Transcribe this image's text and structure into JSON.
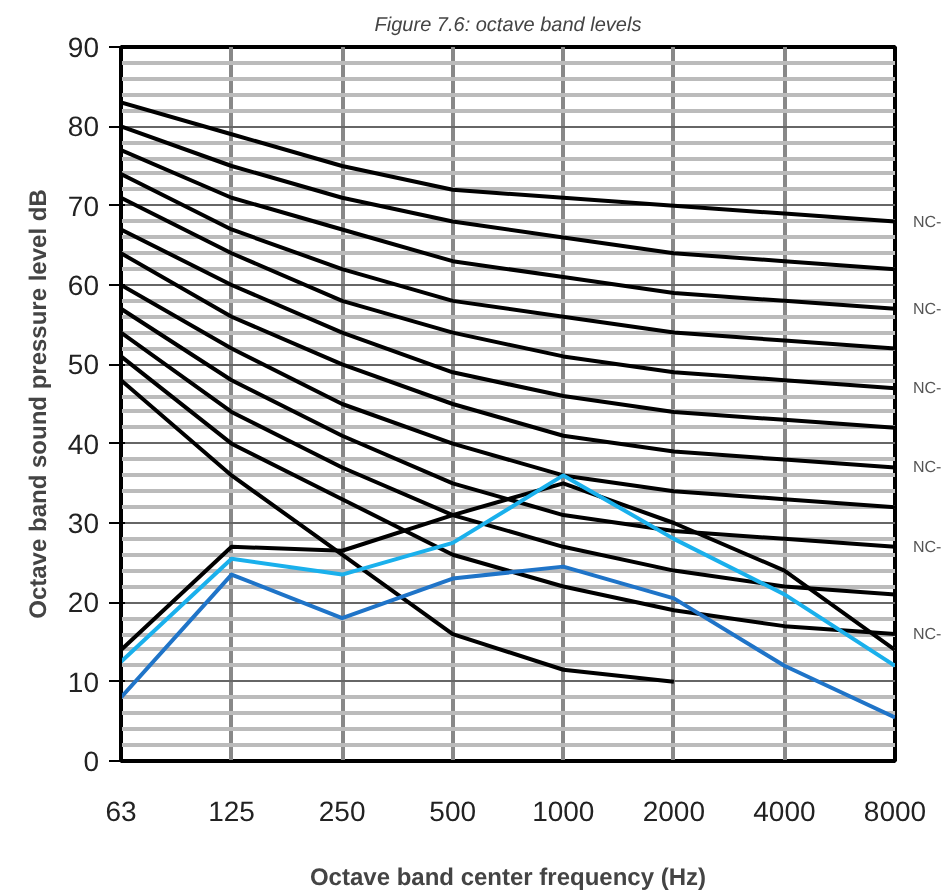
{
  "chart_data": {
    "type": "line",
    "title": "Figure 7.6: octave band levels",
    "xlabel": "Octave band center frequency (Hz)",
    "ylabel": "Octave band sound pressure level dB",
    "categories": [
      "63",
      "125",
      "250",
      "500",
      "1000",
      "2000",
      "4000",
      "8000"
    ],
    "ylim": [
      0,
      90
    ],
    "yticks": [
      0,
      10,
      20,
      30,
      40,
      50,
      60,
      70,
      80,
      90
    ],
    "grid": true,
    "marker": "none",
    "line_style": "solid",
    "series": [
      {
        "color": "#000000",
        "values": [
          83,
          79,
          75,
          72,
          71,
          70,
          69,
          68
        ]
      },
      {
        "color": "#000000",
        "values": [
          80,
          75,
          71,
          68,
          66,
          64,
          63,
          62
        ]
      },
      {
        "color": "#000000",
        "values": [
          77,
          71,
          67,
          63,
          61,
          59,
          58,
          57
        ]
      },
      {
        "color": "#000000",
        "values": [
          74,
          67,
          62,
          58,
          56,
          54,
          53,
          52
        ]
      },
      {
        "color": "#000000",
        "values": [
          71,
          64,
          58,
          54,
          51,
          49,
          48,
          47
        ]
      },
      {
        "color": "#000000",
        "values": [
          67,
          60,
          54,
          49,
          46,
          44,
          43,
          42
        ]
      },
      {
        "color": "#000000",
        "values": [
          64,
          56,
          50,
          45,
          41,
          39,
          38,
          37
        ]
      },
      {
        "color": "#000000",
        "values": [
          60,
          52,
          45,
          40,
          36,
          34,
          33,
          32
        ]
      },
      {
        "color": "#000000",
        "values": [
          57,
          48,
          41,
          35,
          31,
          29,
          28,
          27
        ]
      },
      {
        "color": "#000000",
        "values": [
          54,
          44,
          37,
          31,
          27,
          24,
          22,
          21
        ]
      },
      {
        "color": "#000000",
        "values": [
          51,
          40,
          33,
          26,
          22,
          19,
          17,
          16
        ]
      },
      {
        "color": "#000000",
        "values": [
          48,
          36,
          26,
          16,
          11.5,
          10,
          null,
          null
        ]
      },
      {
        "color": "#000000",
        "values": [
          14,
          27,
          26.5,
          31,
          35,
          30,
          24,
          14
        ]
      },
      {
        "color": "#1ab0ec",
        "values": [
          12.5,
          25.5,
          23.5,
          27.5,
          36,
          28,
          21,
          12
        ]
      },
      {
        "color": "#1f74c8",
        "values": [
          8,
          23.5,
          18,
          23,
          24.5,
          20.5,
          12,
          5.5
        ]
      }
    ],
    "annotations": [
      {
        "text": "NC-",
        "x": "8000",
        "y": 68
      },
      {
        "text": "NC-",
        "x": "8000",
        "y": 57
      },
      {
        "text": "NC-",
        "x": "8000",
        "y": 47
      },
      {
        "text": "NC-",
        "x": "8000",
        "y": 37
      },
      {
        "text": "NC-",
        "x": "8000",
        "y": 27
      },
      {
        "text": "NC-",
        "x": "8000",
        "y": 16
      }
    ]
  }
}
